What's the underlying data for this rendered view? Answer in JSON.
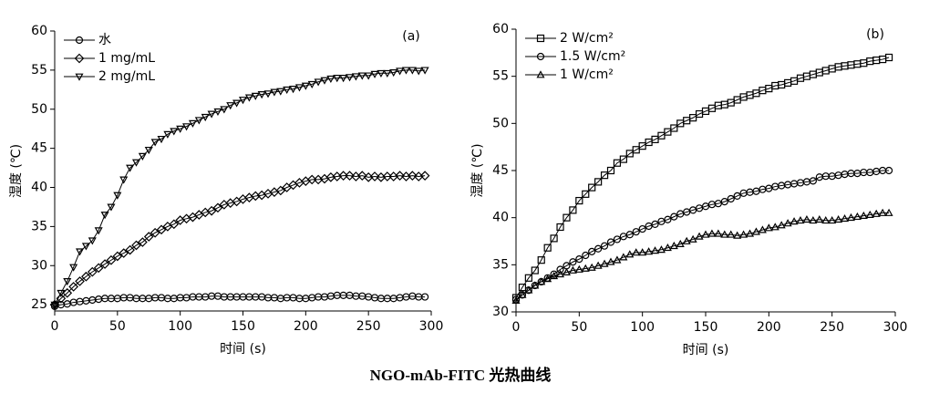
{
  "caption": "NGO-mAb-FITC 光热曲线",
  "chart_data": [
    {
      "type": "line",
      "annotation": "(a)",
      "xlabel": "时间 (s)",
      "ylabel": "湿度 (℃)",
      "xlim": [
        0,
        300
      ],
      "xticks": [
        0,
        50,
        100,
        150,
        200,
        250,
        300
      ],
      "ylim": [
        24.2,
        60
      ],
      "yticks": [
        25,
        30,
        35,
        40,
        45,
        50,
        55,
        60
      ],
      "legend": "upper left",
      "x": [
        0,
        5,
        10,
        15,
        20,
        25,
        30,
        35,
        40,
        45,
        50,
        55,
        60,
        65,
        70,
        75,
        80,
        85,
        90,
        95,
        100,
        105,
        110,
        115,
        120,
        125,
        130,
        135,
        140,
        145,
        150,
        155,
        160,
        165,
        170,
        175,
        180,
        185,
        190,
        195,
        200,
        205,
        210,
        215,
        220,
        225,
        230,
        235,
        240,
        245,
        250,
        255,
        260,
        265,
        270,
        275,
        280,
        285,
        290,
        295
      ],
      "series": [
        {
          "name": "水",
          "color": "#000000",
          "marker": "circle",
          "values": [
            24.8,
            25,
            25.1,
            25.3,
            25.4,
            25.5,
            25.6,
            25.7,
            25.8,
            25.8,
            25.8,
            25.9,
            25.9,
            25.8,
            25.8,
            25.8,
            25.9,
            25.9,
            25.8,
            25.8,
            25.9,
            25.9,
            26,
            26,
            26,
            26.1,
            26.1,
            26,
            26,
            26,
            26,
            26,
            26,
            26,
            25.9,
            25.9,
            25.8,
            25.9,
            25.9,
            25.8,
            25.8,
            25.9,
            26,
            26,
            26.1,
            26.2,
            26.2,
            26.2,
            26.1,
            26.1,
            26,
            25.9,
            25.8,
            25.8,
            25.8,
            25.9,
            26,
            26.1,
            26,
            26
          ]
        },
        {
          "name": "1 mg/mL",
          "color": "#000000",
          "marker": "diamond",
          "values": [
            25,
            25.8,
            26.5,
            27.3,
            28,
            28.6,
            29.2,
            29.7,
            30.2,
            30.7,
            31.2,
            31.6,
            32,
            32.6,
            33,
            33.7,
            34.2,
            34.6,
            35,
            35.3,
            35.8,
            36,
            36.2,
            36.5,
            36.8,
            37,
            37.4,
            37.8,
            38,
            38.2,
            38.5,
            38.7,
            38.9,
            39,
            39.2,
            39.4,
            39.6,
            40,
            40.3,
            40.6,
            40.8,
            41,
            41,
            41.1,
            41.3,
            41.4,
            41.5,
            41.5,
            41.4,
            41.5,
            41.3,
            41.4,
            41.3,
            41.4,
            41.4,
            41.5,
            41.4,
            41.5,
            41.4,
            41.5
          ]
        },
        {
          "name": "2 mg/mL",
          "color": "#000000",
          "marker": "triangle-down",
          "values": [
            25,
            26.5,
            28,
            29.8,
            31.8,
            32.5,
            33.2,
            34.5,
            36.5,
            37.5,
            39,
            41,
            42.5,
            43.2,
            44,
            44.8,
            45.8,
            46.2,
            46.8,
            47.2,
            47.5,
            47.8,
            48.2,
            48.6,
            49,
            49.4,
            49.7,
            50,
            50.5,
            50.8,
            51.2,
            51.5,
            51.7,
            51.9,
            52,
            52.2,
            52.3,
            52.5,
            52.6,
            52.8,
            53,
            53.2,
            53.5,
            53.7,
            53.9,
            54,
            54,
            54.1,
            54.2,
            54.3,
            54.3,
            54.5,
            54.6,
            54.6,
            54.7,
            54.9,
            55,
            55,
            54.9,
            55
          ]
        }
      ]
    },
    {
      "type": "line",
      "annotation": "(b)",
      "xlabel": "时间 (s)",
      "ylabel": "湿度 (℃)",
      "xlim": [
        0,
        300
      ],
      "xticks": [
        0,
        50,
        100,
        150,
        200,
        250,
        300
      ],
      "ylim": [
        30,
        60
      ],
      "yticks": [
        30,
        35,
        40,
        45,
        50,
        55,
        60
      ],
      "legend": "upper left",
      "x": [
        0,
        5,
        10,
        15,
        20,
        25,
        30,
        35,
        40,
        45,
        50,
        55,
        60,
        65,
        70,
        75,
        80,
        85,
        90,
        95,
        100,
        105,
        110,
        115,
        120,
        125,
        130,
        135,
        140,
        145,
        150,
        155,
        160,
        165,
        170,
        175,
        180,
        185,
        190,
        195,
        200,
        205,
        210,
        215,
        220,
        225,
        230,
        235,
        240,
        245,
        250,
        255,
        260,
        265,
        270,
        275,
        280,
        285,
        290,
        295
      ],
      "series": [
        {
          "name": "2 W/cm²",
          "color": "#000000",
          "marker": "square",
          "values": [
            31.5,
            32.6,
            33.6,
            34.4,
            35.5,
            36.8,
            37.8,
            39,
            40,
            40.8,
            41.8,
            42.5,
            43.2,
            43.8,
            44.5,
            45,
            45.8,
            46.2,
            46.8,
            47.2,
            47.6,
            48,
            48.3,
            48.7,
            49.1,
            49.5,
            50,
            50.3,
            50.6,
            51,
            51.3,
            51.6,
            51.9,
            52,
            52.2,
            52.5,
            52.8,
            53,
            53.2,
            53.5,
            53.7,
            54,
            54.1,
            54.3,
            54.5,
            54.8,
            55,
            55.2,
            55.4,
            55.6,
            55.8,
            56,
            56.1,
            56.2,
            56.3,
            56.4,
            56.6,
            56.7,
            56.8,
            57
          ]
        },
        {
          "name": "1.5 W/cm²",
          "color": "#000000",
          "marker": "circle",
          "values": [
            31.3,
            31.8,
            32.3,
            32.8,
            33.2,
            33.6,
            34,
            34.5,
            34.9,
            35.3,
            35.6,
            36,
            36.4,
            36.7,
            37,
            37.4,
            37.7,
            38,
            38.2,
            38.5,
            38.8,
            39.1,
            39.3,
            39.6,
            39.8,
            40.1,
            40.4,
            40.6,
            40.8,
            41,
            41.2,
            41.4,
            41.5,
            41.7,
            42,
            42.3,
            42.6,
            42.7,
            42.8,
            43,
            43.1,
            43.3,
            43.4,
            43.5,
            43.6,
            43.7,
            43.8,
            43.9,
            44.3,
            44.4,
            44.4,
            44.5,
            44.6,
            44.7,
            44.7,
            44.8,
            44.8,
            44.9,
            45,
            45
          ]
        },
        {
          "name": "1 W/cm²",
          "color": "#000000",
          "marker": "triangle-up",
          "values": [
            31.2,
            31.8,
            32.3,
            32.8,
            33.2,
            33.5,
            33.8,
            34,
            34.2,
            34.4,
            34.5,
            34.6,
            34.7,
            34.9,
            35.1,
            35.3,
            35.5,
            35.8,
            36.1,
            36.3,
            36.3,
            36.4,
            36.5,
            36.6,
            36.8,
            37,
            37.2,
            37.5,
            37.7,
            38,
            38.2,
            38.3,
            38.3,
            38.2,
            38.2,
            38.1,
            38.2,
            38.3,
            38.5,
            38.7,
            38.9,
            39,
            39.2,
            39.4,
            39.6,
            39.7,
            39.8,
            39.7,
            39.8,
            39.7,
            39.7,
            39.8,
            39.9,
            40,
            40.1,
            40.2,
            40.3,
            40.4,
            40.5,
            40.5
          ]
        }
      ]
    }
  ]
}
